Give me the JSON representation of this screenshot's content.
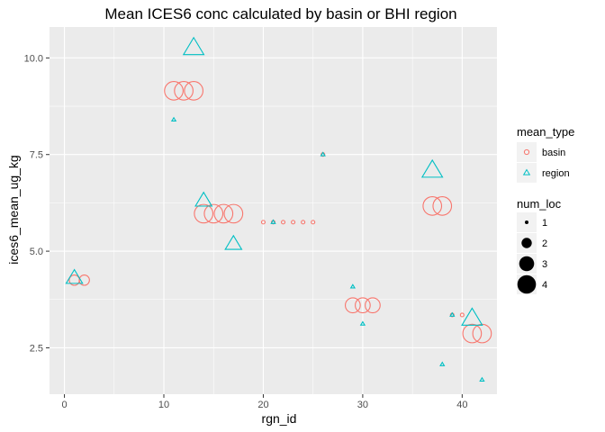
{
  "chart_data": {
    "type": "scatter",
    "title": "Mean ICES6 conc calculated by basin or BHI region",
    "xlabel": "rgn_id",
    "ylabel": "ices6_mean_ug_kg",
    "xlim": [
      -1.5,
      43.5
    ],
    "ylim": [
      1.3,
      10.8
    ],
    "x_ticks": [
      0,
      10,
      20,
      30,
      40
    ],
    "x_tick_labels": [
      "0",
      "10",
      "20",
      "30",
      "40"
    ],
    "y_ticks": [
      2.5,
      5.0,
      7.5,
      10.0
    ],
    "y_tick_labels": [
      "2.5",
      "5.0",
      "7.5",
      "10.0"
    ],
    "grid": true,
    "legend_placement": "right",
    "legends": {
      "color_shape": {
        "title": "mean_type",
        "items": [
          {
            "label": "basin",
            "shape": "circle",
            "color": "#F8766D"
          },
          {
            "label": "region",
            "shape": "triangle",
            "color": "#00BFC4"
          }
        ]
      },
      "size": {
        "title": "num_loc",
        "items": [
          {
            "label": "1",
            "value": 1
          },
          {
            "label": "2",
            "value": 2
          },
          {
            "label": "3",
            "value": 3
          },
          {
            "label": "4",
            "value": 4
          }
        ]
      }
    },
    "colors": {
      "basin": "#F8766D",
      "region": "#00BFC4",
      "panel": "#EBEBEB",
      "grid": "#FFFFFF"
    },
    "series": [
      {
        "name": "basin",
        "points": [
          {
            "x": 1,
            "y": 4.25,
            "num_loc": 2
          },
          {
            "x": 2,
            "y": 4.25,
            "num_loc": 2
          },
          {
            "x": 11,
            "y": 9.15,
            "num_loc": 4
          },
          {
            "x": 12,
            "y": 9.15,
            "num_loc": 4
          },
          {
            "x": 13,
            "y": 9.15,
            "num_loc": 4
          },
          {
            "x": 14,
            "y": 5.97,
            "num_loc": 4
          },
          {
            "x": 15,
            "y": 5.97,
            "num_loc": 4
          },
          {
            "x": 16,
            "y": 5.97,
            "num_loc": 4
          },
          {
            "x": 17,
            "y": 5.97,
            "num_loc": 4
          },
          {
            "x": 20,
            "y": 5.75,
            "num_loc": 1
          },
          {
            "x": 21,
            "y": 5.75,
            "num_loc": 1
          },
          {
            "x": 22,
            "y": 5.75,
            "num_loc": 1
          },
          {
            "x": 23,
            "y": 5.75,
            "num_loc": 1
          },
          {
            "x": 24,
            "y": 5.75,
            "num_loc": 1
          },
          {
            "x": 25,
            "y": 5.75,
            "num_loc": 1
          },
          {
            "x": 26,
            "y": 7.5,
            "num_loc": 1
          },
          {
            "x": 29,
            "y": 3.6,
            "num_loc": 3
          },
          {
            "x": 30,
            "y": 3.6,
            "num_loc": 3
          },
          {
            "x": 31,
            "y": 3.6,
            "num_loc": 3
          },
          {
            "x": 37,
            "y": 6.17,
            "num_loc": 4
          },
          {
            "x": 38,
            "y": 6.17,
            "num_loc": 4
          },
          {
            "x": 39,
            "y": 3.35,
            "num_loc": 1
          },
          {
            "x": 40,
            "y": 3.35,
            "num_loc": 1
          },
          {
            "x": 41,
            "y": 2.87,
            "num_loc": 4
          },
          {
            "x": 42,
            "y": 2.87,
            "num_loc": 4
          }
        ]
      },
      {
        "name": "region",
        "points": [
          {
            "x": 1,
            "y": 4.3,
            "num_loc": 3
          },
          {
            "x": 11,
            "y": 8.4,
            "num_loc": 1
          },
          {
            "x": 13,
            "y": 10.25,
            "num_loc": 4
          },
          {
            "x": 14,
            "y": 6.3,
            "num_loc": 3
          },
          {
            "x": 17,
            "y": 5.18,
            "num_loc": 3
          },
          {
            "x": 21,
            "y": 5.75,
            "num_loc": 1
          },
          {
            "x": 26,
            "y": 7.5,
            "num_loc": 1
          },
          {
            "x": 29,
            "y": 4.08,
            "num_loc": 1
          },
          {
            "x": 30,
            "y": 3.12,
            "num_loc": 1
          },
          {
            "x": 37,
            "y": 7.08,
            "num_loc": 4
          },
          {
            "x": 38,
            "y": 2.07,
            "num_loc": 1
          },
          {
            "x": 39,
            "y": 3.35,
            "num_loc": 1
          },
          {
            "x": 41,
            "y": 3.25,
            "num_loc": 4
          },
          {
            "x": 42,
            "y": 1.67,
            "num_loc": 1
          }
        ]
      }
    ]
  }
}
